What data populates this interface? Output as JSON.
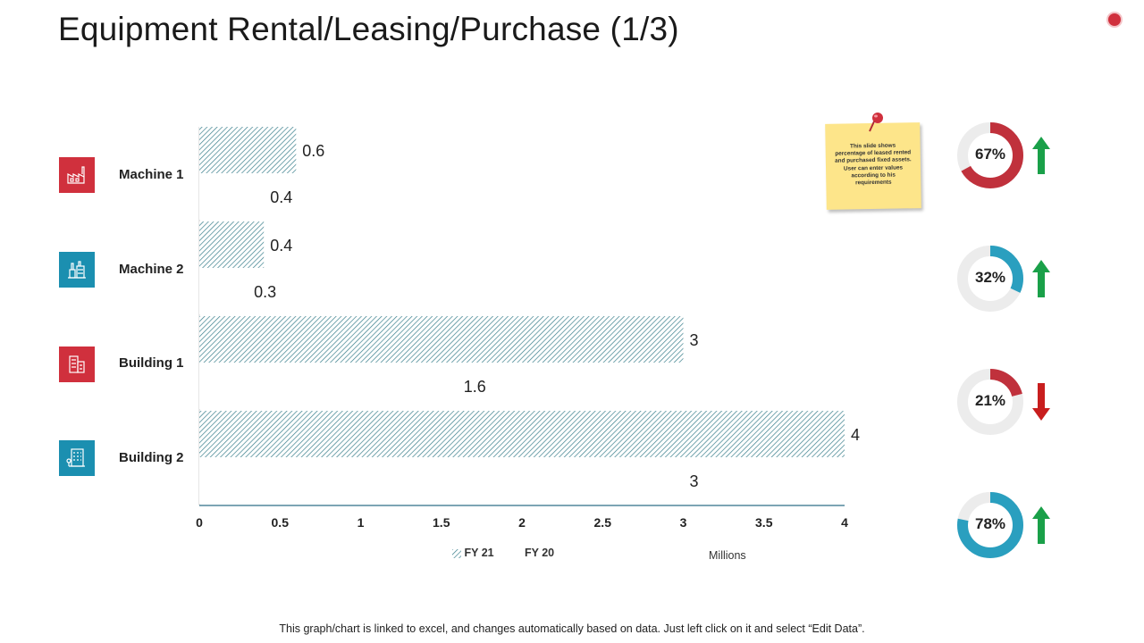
{
  "title": "Equipment Rental/Leasing/Purchase (1/3)",
  "categories": [
    {
      "label": "Machine 1",
      "icon": "factory-icon",
      "color": "#d0303d"
    },
    {
      "label": "Machine 2",
      "icon": "plant-icon",
      "color": "#1b8fb0"
    },
    {
      "label": "Building 1",
      "icon": "building-icon",
      "color": "#d0303d"
    },
    {
      "label": "Building 2",
      "icon": "office-building-icon",
      "color": "#1b8fb0"
    }
  ],
  "chart_data": {
    "type": "bar",
    "orientation": "horizontal",
    "categories": [
      "Machine 1",
      "Machine 2",
      "Building 1",
      "Building 2"
    ],
    "series": [
      {
        "name": "FY 21",
        "values": [
          0.6,
          0.4,
          3,
          4
        ],
        "pattern": "diagonal-hatch",
        "color": "#3a7f8c"
      },
      {
        "name": "FY 20",
        "values": [
          0.4,
          0.3,
          1.6,
          3
        ],
        "pattern": "none",
        "color": "#ffffff"
      }
    ],
    "data_labels": {
      "FY 21": [
        "0.6",
        "0.4",
        "3",
        "4"
      ],
      "FY 20": [
        "0.4",
        "0.3",
        "1.6",
        "3"
      ]
    },
    "xlim": [
      0,
      4
    ],
    "xticks": [
      "0",
      "0.5",
      "1",
      "1.5",
      "2",
      "2.5",
      "3",
      "3.5",
      "4"
    ],
    "xlabel": "Millions",
    "legend_position": "bottom",
    "grid": false
  },
  "legend": {
    "fy21": "FY 21",
    "fy20": "FY 20"
  },
  "units_label": "Millions",
  "note": {
    "text": "This slide shows percentage of leased rented and purchased fixed assets. User can enter values according to his requirements",
    "color": "#fde58a"
  },
  "donuts": [
    {
      "label": "67%",
      "value": 0.67,
      "color": "#c0313c",
      "trend": "up",
      "trend_color": "#1aa049"
    },
    {
      "label": "32%",
      "value": 0.32,
      "color": "#2a9fbf",
      "trend": "up",
      "trend_color": "#1aa049"
    },
    {
      "label": "21%",
      "value": 0.21,
      "color": "#c0313c",
      "trend": "down",
      "trend_color": "#c81e1e"
    },
    {
      "label": "78%",
      "value": 0.78,
      "color": "#2a9fbf",
      "trend": "up",
      "trend_color": "#1aa049"
    }
  ],
  "footer": "This graph/chart is linked to excel, and changes automatically based on data. Just left click on it and select “Edit Data”."
}
